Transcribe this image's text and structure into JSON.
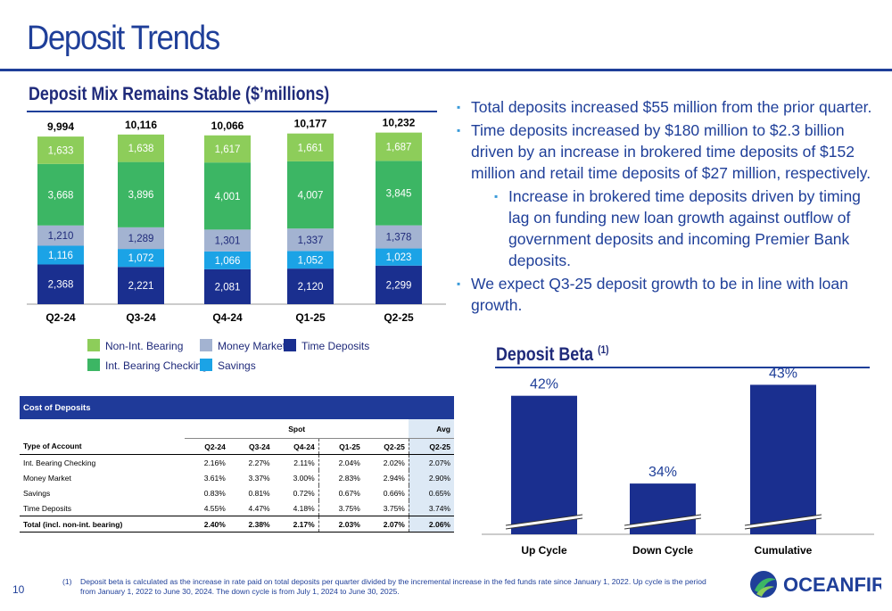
{
  "page": {
    "title": "Deposit Trends",
    "page_number": "10",
    "brand": "OceanFirst",
    "colors": {
      "brand_blue": "#1f3f99",
      "navy": "#1f2a7a",
      "non_int_bearing": "#8dcd5a",
      "int_bearing_checking": "#3cb664",
      "money_market": "#a3b3d1",
      "savings": "#1ba3e6",
      "time_deposits": "#1a2f8f"
    }
  },
  "deposit_mix": {
    "heading": "Deposit Mix Remains Stable ($’millions)",
    "totals": [
      "9,994",
      "10,116",
      "10,066",
      "10,177",
      "10,232"
    ]
  },
  "bullets": [
    "Total deposits increased $55 million from the prior quarter.",
    "Time deposits increased by $180 million to $2.3 billion driven by an increase in brokered time deposits of $152 million and retail time deposits of $27 million, respectively.",
    "Increase in brokered time deposits driven by timing lag on funding new loan growth against outflow of government deposits and incoming Premier Bank deposits.",
    "We expect Q3-25 deposit growth to be in line with loan growth."
  ],
  "deposit_beta": {
    "heading": "Deposit Beta",
    "heading_note": "(1)"
  },
  "cost_table": {
    "caption": "Cost of Deposits",
    "spot_label": "Spot",
    "avg_label": "Avg",
    "columns": [
      "Type of Account",
      "Q2-24",
      "Q3-24",
      "Q4-24",
      "Q1-25",
      "Q2-25",
      "Q2-25"
    ],
    "rows": [
      [
        "Int. Bearing Checking",
        "2.16%",
        "2.27%",
        "2.11%",
        "2.04%",
        "2.02%",
        "2.07%"
      ],
      [
        "Money Market",
        "3.61%",
        "3.37%",
        "3.00%",
        "2.83%",
        "2.94%",
        "2.90%"
      ],
      [
        "Savings",
        "0.83%",
        "0.81%",
        "0.72%",
        "0.67%",
        "0.66%",
        "0.65%"
      ],
      [
        "Time Deposits",
        "4.55%",
        "4.47%",
        "4.18%",
        "3.75%",
        "3.75%",
        "3.74%"
      ]
    ],
    "total_row": [
      "Total (incl. non-int. bearing)",
      "2.40%",
      "2.38%",
      "2.17%",
      "2.03%",
      "2.07%",
      "2.06%"
    ]
  },
  "footnote": {
    "marker": "(1)",
    "text": "Deposit beta is calculated as the increase in rate paid on total deposits per quarter divided by the incremental increase in the fed funds rate since January 1, 2022. Up cycle is the period from January 1, 2022 to June 30, 2024. The down cycle is from July 1, 2024 to June 30, 2025."
  },
  "chart_data": [
    {
      "type": "bar",
      "stacked": true,
      "categories": [
        "Q2-24",
        "Q3-24",
        "Q4-24",
        "Q1-25",
        "Q2-25"
      ],
      "series": [
        {
          "name": "Time Deposits",
          "color": "#1a2f8f",
          "values": [
            2368,
            2221,
            2081,
            2120,
            2299
          ],
          "labels": [
            "2,368",
            "2,221",
            "2,081",
            "2,120",
            "2,299"
          ]
        },
        {
          "name": "Savings",
          "color": "#1ba3e6",
          "values": [
            1116,
            1072,
            1066,
            1052,
            1023
          ],
          "labels": [
            "1,116",
            "1,072",
            "1,066",
            "1,052",
            "1,023"
          ]
        },
        {
          "name": "Money Market",
          "color": "#a3b3d1",
          "values": [
            1210,
            1289,
            1301,
            1337,
            1378
          ],
          "labels": [
            "1,210",
            "1,289",
            "1,301",
            "1,337",
            "1,378"
          ]
        },
        {
          "name": "Int. Bearing Checking",
          "color": "#3cb664",
          "values": [
            3668,
            3896,
            4001,
            4007,
            3845
          ],
          "labels": [
            "3,668",
            "3,896",
            "4,001",
            "4,007",
            "3,845"
          ]
        },
        {
          "name": "Non-Int. Bearing",
          "color": "#8dcd5a",
          "values": [
            1633,
            1638,
            1617,
            1661,
            1687
          ],
          "labels": [
            "1,633",
            "1,638",
            "1,617",
            "1,661",
            "1,687"
          ]
        }
      ],
      "legend": [
        "Non-Int. Bearing",
        "Money Market",
        "Time Deposits",
        "Int. Bearing Checking",
        "Savings"
      ],
      "legend_position": "bottom"
    },
    {
      "type": "bar",
      "categories": [
        "Up Cycle",
        "Down Cycle",
        "Cumulative"
      ],
      "values": [
        42,
        34,
        43
      ],
      "labels": [
        "42%",
        "34%",
        "43%"
      ],
      "y_break": true,
      "color": "#1a2f8f"
    }
  ]
}
